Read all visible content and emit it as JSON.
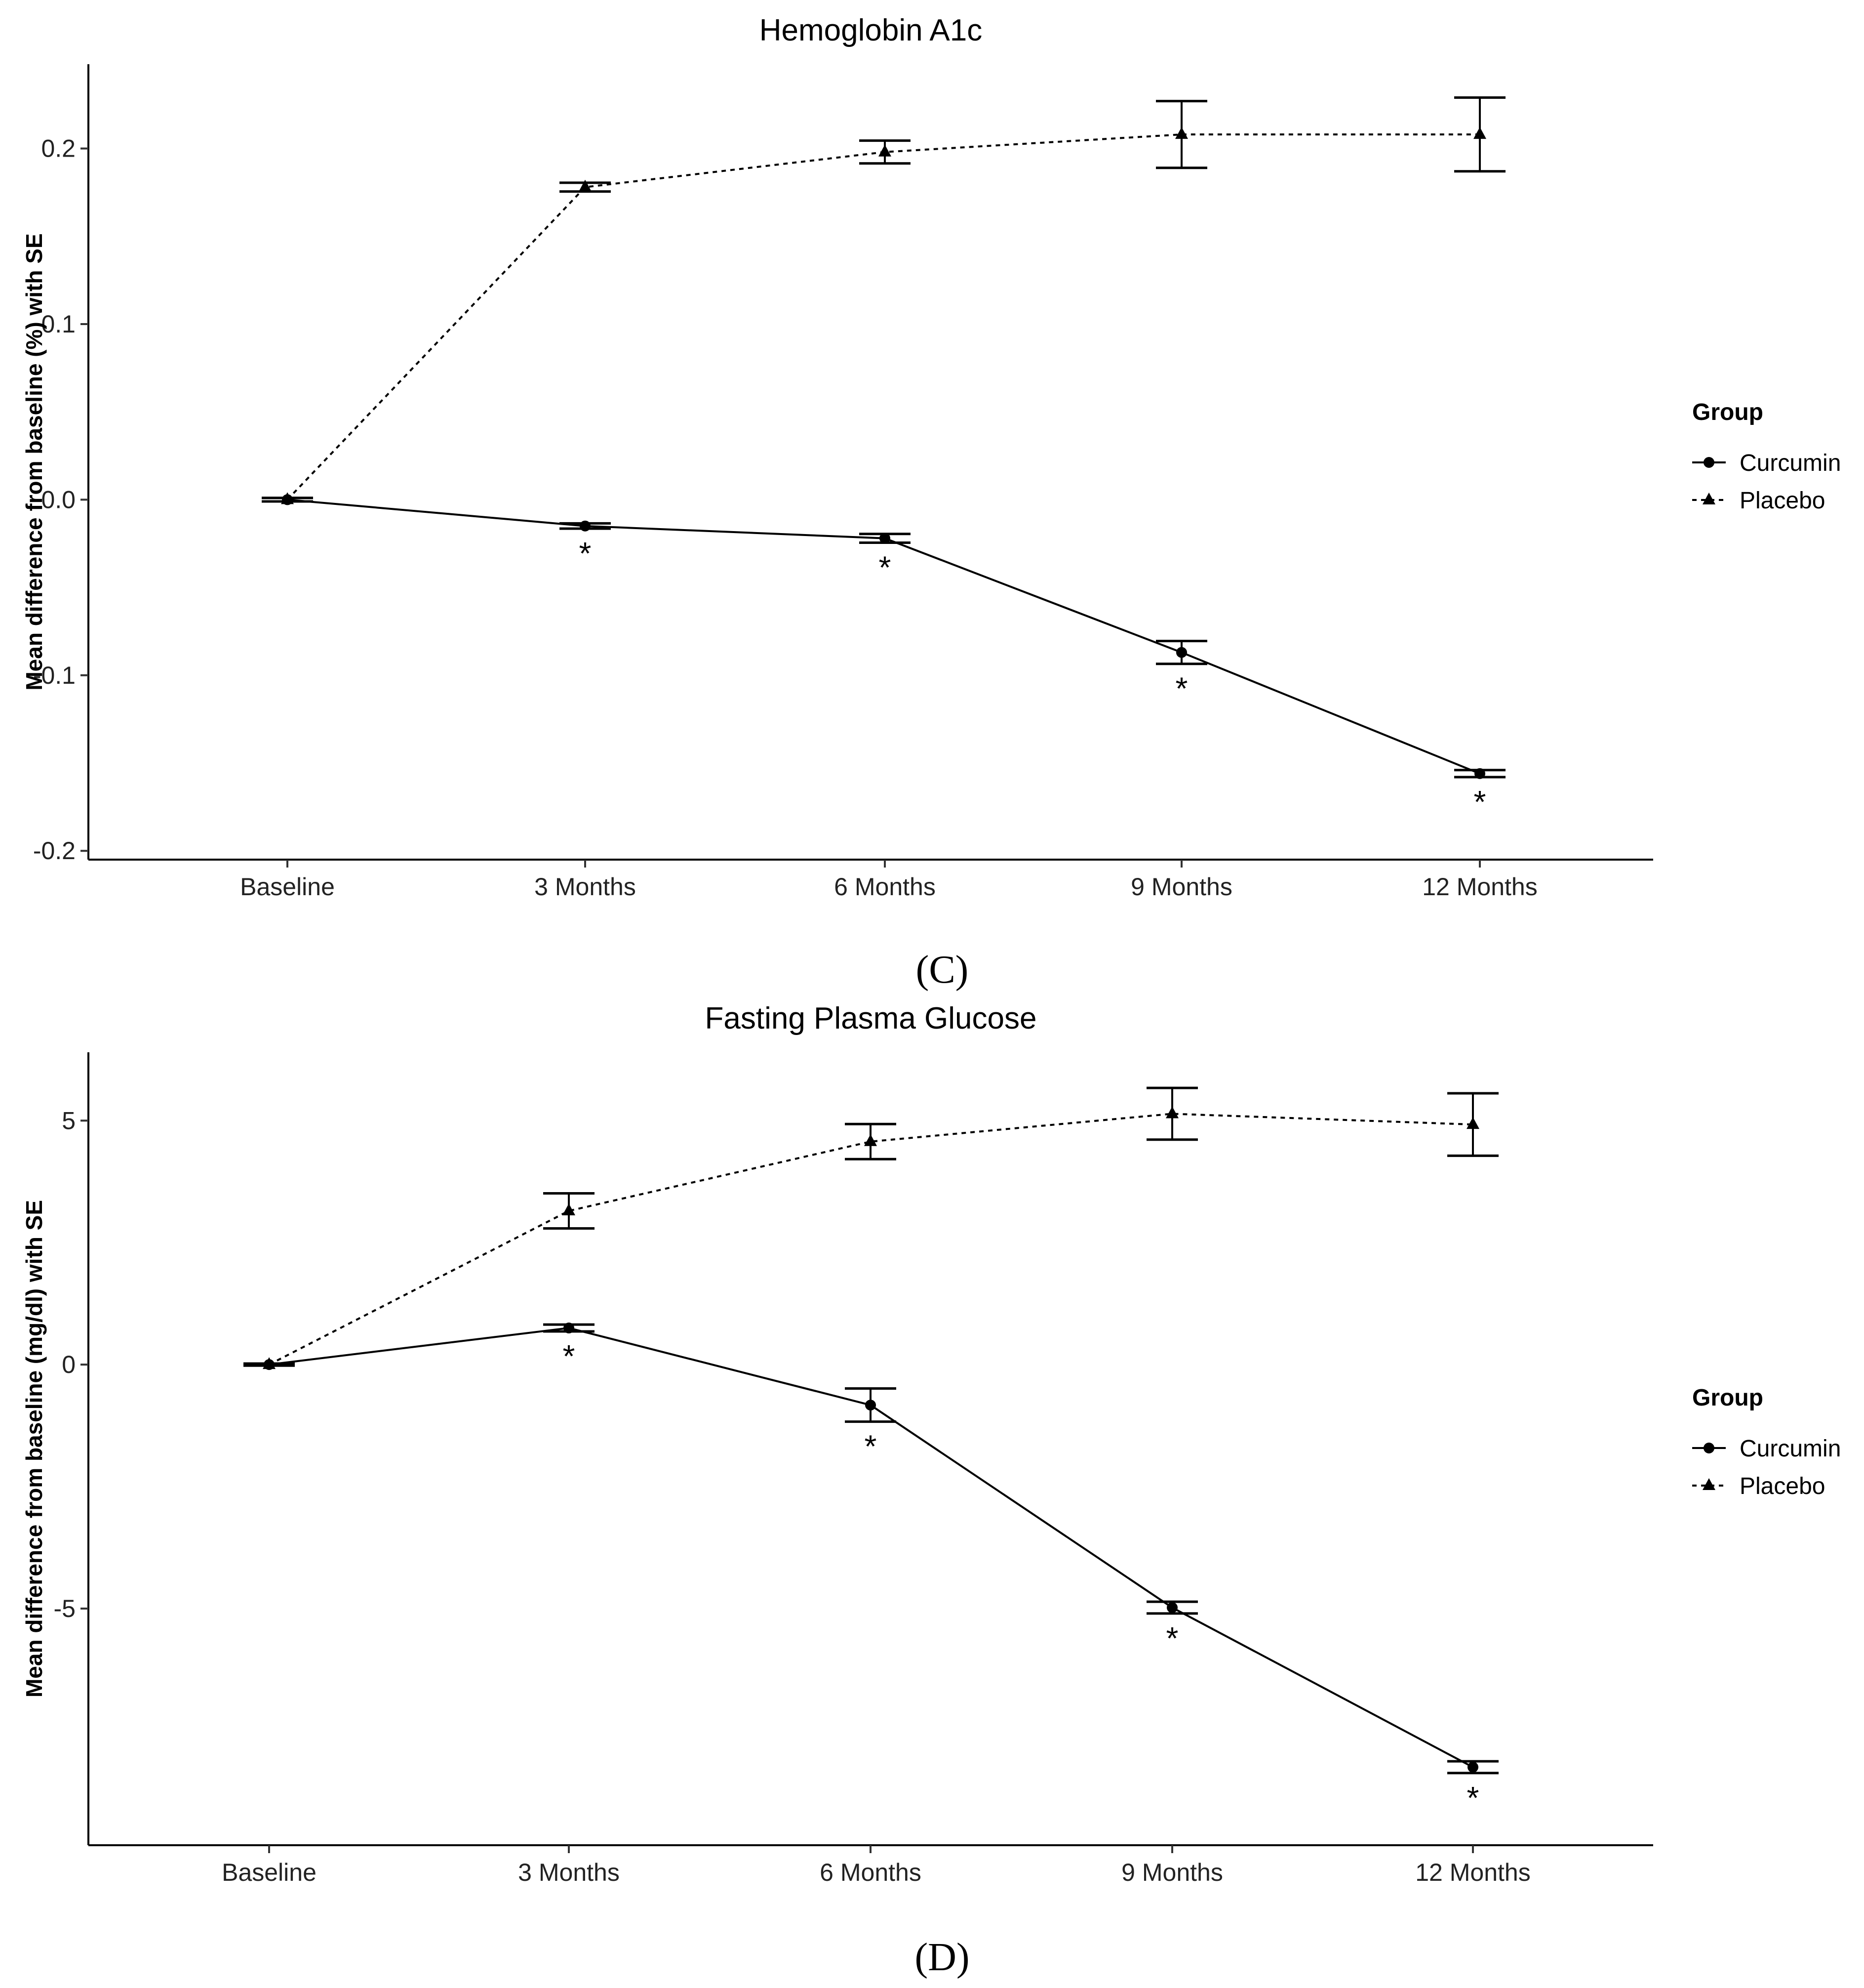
{
  "figure_labels": [
    "(C)",
    "(D)"
  ],
  "chart_data": [
    {
      "type": "line",
      "title": "Hemoglobin A1c",
      "xlabel": "",
      "ylabel": "Mean difference from baseline (%) with SE",
      "categories": [
        "Baseline",
        "3 Months",
        "6 Months",
        "9 Months",
        "12 Months"
      ],
      "ylim": [
        -0.205,
        0.248
      ],
      "yticks": [
        -0.2,
        -0.1,
        0.0,
        0.1,
        0.2
      ],
      "ytick_labels": [
        "-0.2",
        "-0.1",
        "0.0",
        "0.1",
        "0.2"
      ],
      "grid": false,
      "legend": {
        "title": "Group",
        "position": "right"
      },
      "series": [
        {
          "name": "Curcumin",
          "marker": "circle",
          "linestyle": "solid",
          "values": [
            0.0,
            -0.015,
            -0.022,
            -0.087,
            -0.156
          ],
          "se": [
            0.001,
            0.0015,
            0.0025,
            0.0065,
            0.002
          ]
        },
        {
          "name": "Placebo",
          "marker": "triangle",
          "linestyle": "dotted",
          "values": [
            0.0,
            0.178,
            0.198,
            0.208,
            0.208
          ],
          "se": [
            0.001,
            0.0025,
            0.0065,
            0.019,
            0.021
          ]
        }
      ],
      "annotations": [
        {
          "text": "*",
          "category": "3 Months",
          "series": "Curcumin"
        },
        {
          "text": "*",
          "category": "6 Months",
          "series": "Curcumin"
        },
        {
          "text": "*",
          "category": "9 Months",
          "series": "Curcumin"
        },
        {
          "text": "*",
          "category": "12 Months",
          "series": "Curcumin"
        }
      ]
    },
    {
      "type": "line",
      "title": "Fasting Plasma Glucose",
      "xlabel": "",
      "ylabel": "Mean difference from baseline (mg/dl) with SE",
      "categories": [
        "Baseline",
        "3 Months",
        "6 Months",
        "9 Months",
        "12 Months"
      ],
      "ylim": [
        -9.85,
        6.4
      ],
      "yticks": [
        -5,
        0,
        5
      ],
      "ytick_labels": [
        "-5",
        "0",
        "5"
      ],
      "grid": false,
      "legend": {
        "title": "Group",
        "position": "right"
      },
      "series": [
        {
          "name": "Curcumin",
          "marker": "circle",
          "linestyle": "solid",
          "values": [
            0.0,
            0.75,
            -0.83,
            -4.98,
            -8.25
          ],
          "se": [
            0.02,
            0.07,
            0.34,
            0.12,
            0.12
          ]
        },
        {
          "name": "Placebo",
          "marker": "triangle",
          "linestyle": "dotted",
          "values": [
            0.0,
            3.15,
            4.57,
            5.14,
            4.92
          ],
          "se": [
            0.02,
            0.36,
            0.36,
            0.53,
            0.64
          ]
        }
      ],
      "annotations": [
        {
          "text": "*",
          "category": "3 Months",
          "series": "Curcumin"
        },
        {
          "text": "*",
          "category": "6 Months",
          "series": "Curcumin"
        },
        {
          "text": "*",
          "category": "9 Months",
          "series": "Curcumin"
        },
        {
          "text": "*",
          "category": "12 Months",
          "series": "Curcumin"
        }
      ]
    }
  ]
}
